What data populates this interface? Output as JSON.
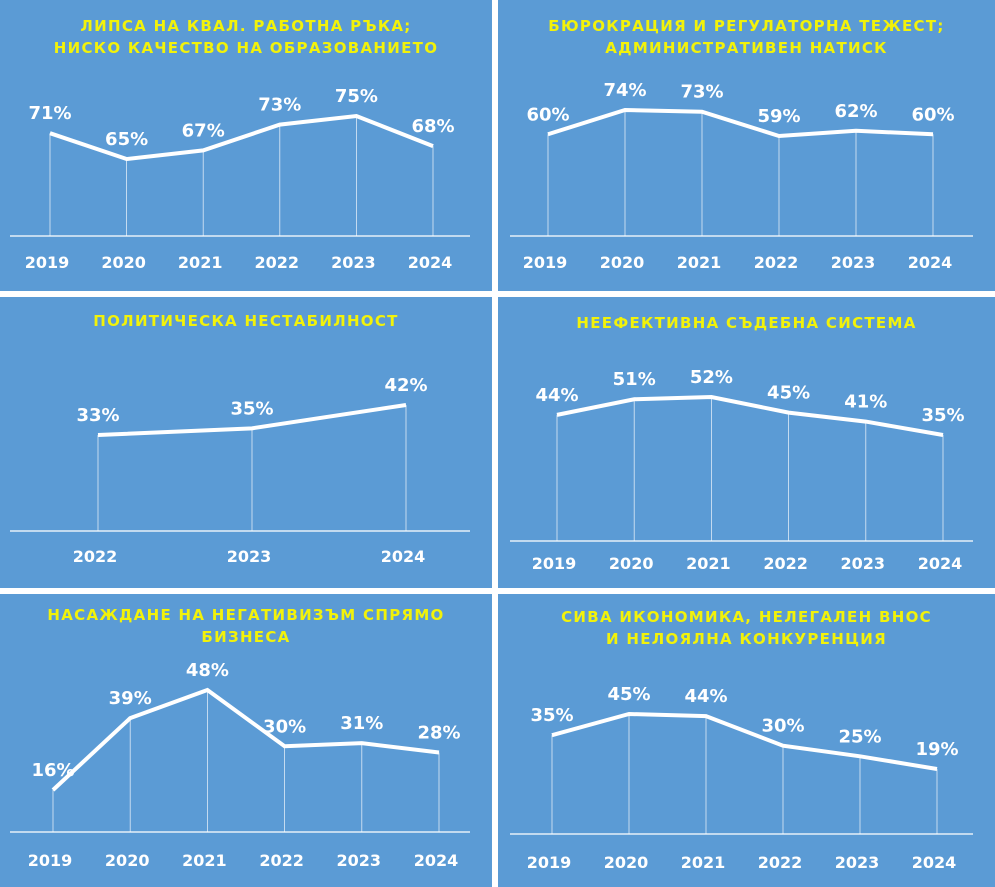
{
  "colors": {
    "background": "#5b9bd5",
    "title": "#f2f20a",
    "line": "#ffffff"
  },
  "chart_data": [
    {
      "type": "line",
      "title_lines": [
        "ЛИПСА НА КВАЛ. РАБОТНА РЪКА;",
        "НИСКО КАЧЕСТВО НА ОБРАЗОВАНИЕТО"
      ],
      "categories": [
        "2019",
        "2020",
        "2021",
        "2022",
        "2023",
        "2024"
      ],
      "values": [
        71,
        65,
        67,
        73,
        75,
        68
      ],
      "labels": [
        "71%",
        "65%",
        "67%",
        "73%",
        "75%",
        "68%"
      ]
    },
    {
      "type": "line",
      "title_lines": [
        "БЮРОКРАЦИЯ И РЕГУЛАТОРНА ТЕЖЕСТ;",
        "АДМИНИСТРАТИВЕН НАТИСК"
      ],
      "categories": [
        "2019",
        "2020",
        "2021",
        "2022",
        "2023",
        "2024"
      ],
      "values": [
        60,
        74,
        73,
        59,
        62,
        60
      ],
      "labels": [
        "60%",
        "74%",
        "73%",
        "59%",
        "62%",
        "60%"
      ]
    },
    {
      "type": "line",
      "title_lines": [
        "ПОЛИТИЧЕСКА НЕСТАБИЛНОСТ"
      ],
      "categories": [
        "2022",
        "2023",
        "2024"
      ],
      "values": [
        33,
        35,
        42
      ],
      "labels": [
        "33%",
        "35%",
        "42%"
      ]
    },
    {
      "type": "line",
      "title_lines": [
        "НЕЕФЕКТИВНА СЪДЕБНА СИСТЕМА"
      ],
      "categories": [
        "2019",
        "2020",
        "2021",
        "2022",
        "2023",
        "2024"
      ],
      "values": [
        44,
        51,
        52,
        45,
        41,
        35
      ],
      "labels": [
        "44%",
        "51%",
        "52%",
        "45%",
        "41%",
        "35%"
      ]
    },
    {
      "type": "line",
      "title_lines": [
        "НАСАЖДАНЕ НА НЕГАТИВИЗЪМ СПРЯМО",
        "БИЗНЕСА"
      ],
      "categories": [
        "2019",
        "2020",
        "2021",
        "2022",
        "2023",
        "2024"
      ],
      "values": [
        16,
        39,
        48,
        30,
        31,
        28
      ],
      "labels": [
        "16%",
        "39%",
        "48%",
        "30%",
        "31%",
        "28%"
      ]
    },
    {
      "type": "line",
      "title_lines": [
        "СИВА ИКОНОМИКА, НЕЛЕГАЛЕН ВНОС",
        "И НЕЛОЯЛНА КОНКУРЕНЦИЯ"
      ],
      "categories": [
        "2019",
        "2020",
        "2021",
        "2022",
        "2023",
        "2024"
      ],
      "values": [
        35,
        45,
        44,
        30,
        25,
        19
      ],
      "labels": [
        "35%",
        "45%",
        "44%",
        "30%",
        "25%",
        "19%"
      ]
    }
  ]
}
